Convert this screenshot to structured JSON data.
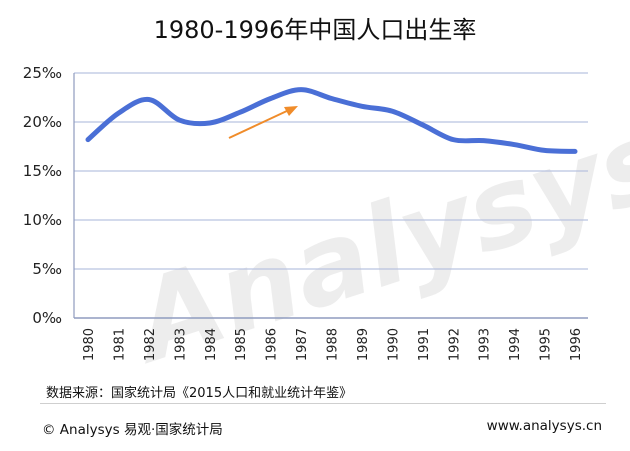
{
  "chart_data": {
    "type": "line",
    "title": "1980-1996年中国人口出生率",
    "x": [
      "1980",
      "1981",
      "1982",
      "1983",
      "1984",
      "1985",
      "1986",
      "1987",
      "1988",
      "1989",
      "1990",
      "1991",
      "1992",
      "1993",
      "1994",
      "1995",
      "1996"
    ],
    "series": [
      {
        "values": [
          18.2,
          20.9,
          22.3,
          20.2,
          19.9,
          21.0,
          22.4,
          23.3,
          22.4,
          21.6,
          21.1,
          19.7,
          18.2,
          18.1,
          17.7,
          17.1,
          17.0
        ]
      }
    ],
    "y_ticks": [
      "0‰",
      "5‰",
      "10‰",
      "15‰",
      "20‰",
      "25‰"
    ],
    "ylim": [
      0,
      25
    ],
    "grid": true,
    "colors": {
      "line": "#4a6fd6",
      "arrow": "#f08c2a",
      "grid": "#b9c3e0"
    },
    "watermark": "Analysys"
  },
  "footer": {
    "source": "数据来源：国家统计局《2015人口和就业统计年鉴》",
    "copyright": "© Analysys 易观·国家统计局",
    "website": "www.analysys.cn"
  }
}
